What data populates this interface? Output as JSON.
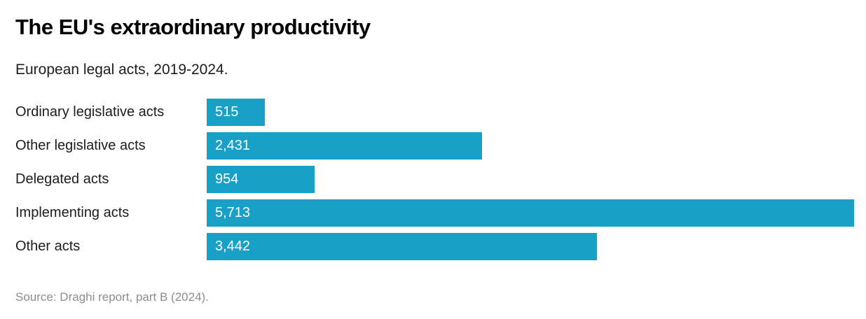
{
  "header": {
    "title": "The EU's extraordinary productivity",
    "subtitle": "European legal acts, 2019-2024."
  },
  "chart_data": {
    "type": "bar",
    "orientation": "horizontal",
    "title": "The EU's extraordinary productivity",
    "subtitle": "European legal acts, 2019-2024.",
    "categories": [
      "Ordinary legislative acts",
      "Other legislative acts",
      "Delegated acts",
      "Implementing acts",
      "Other acts"
    ],
    "values": [
      515,
      2431,
      954,
      5713,
      3442
    ],
    "value_labels": [
      "515",
      "2,431",
      "954",
      "5,713",
      "3,442"
    ],
    "xlim": [
      0,
      5713
    ],
    "bar_color": "#18a0c9",
    "value_label_color": "#ffffff",
    "value_label_position": "inside-start",
    "grid": "off",
    "legend": "none",
    "axes_visible": false
  },
  "footer": {
    "source": "Source: Draghi report, part B (2024)."
  }
}
